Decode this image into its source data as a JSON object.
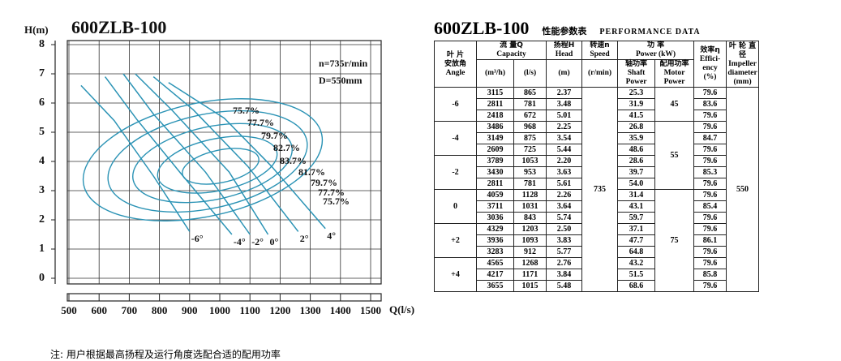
{
  "chart_data": {
    "type": "line",
    "title": "600ZLB-100",
    "y_label": "H(m)",
    "x_label": "Q(l/s)",
    "speed_note": "n=735r/min",
    "diameter_note": "D=550mm",
    "efficiency_labels": [
      "75.7%",
      "77.7%",
      "79.7%",
      "82.7%",
      "83.7%",
      "81.7%",
      "79.7%",
      "77.7%",
      "75.7%"
    ],
    "xlim": [
      500,
      1500
    ],
    "xticks": [
      500,
      600,
      700,
      800,
      900,
      1000,
      1100,
      1200,
      1300,
      1400,
      1500
    ],
    "ylim": [
      0,
      8
    ],
    "yticks": [
      0,
      1,
      2,
      3,
      4,
      5,
      6,
      7,
      8
    ],
    "grid": true,
    "color": "#2b93b5",
    "series": [
      {
        "name": "-6°",
        "x": [
          540,
          650,
          780,
          900
        ],
        "values": [
          6.6,
          5.4,
          3.5,
          1.6
        ]
      },
      {
        "name": "-4°",
        "x": [
          620,
          725,
          875,
          1040
        ],
        "values": [
          6.9,
          5.44,
          3.54,
          1.5
        ]
      },
      {
        "name": "-2°",
        "x": [
          680,
          781,
          953,
          1100
        ],
        "values": [
          7.0,
          5.61,
          3.63,
          1.5
        ]
      },
      {
        "name": "0°",
        "x": [
          720,
          843,
          1031,
          1160
        ],
        "values": [
          7.0,
          5.74,
          3.64,
          1.5
        ]
      },
      {
        "name": "2°",
        "x": [
          780,
          912,
          1093,
          1260
        ],
        "values": [
          6.9,
          5.77,
          3.83,
          1.6
        ]
      },
      {
        "name": "4°",
        "x": [
          830,
          1015,
          1171,
          1350
        ],
        "values": [
          6.7,
          5.48,
          3.84,
          1.7
        ]
      }
    ]
  },
  "table": {
    "title": "600ZLB-100",
    "title_cn": "性能参数表",
    "title_en": "PERFORMANCE DATA",
    "headers": {
      "angle_cn": "叶 片",
      "angle_cn2": "安放角",
      "angle_en": "Angle",
      "flow_cn": "流 量Q",
      "flow_en": "Capacity",
      "flow_u1": "(m³/h)",
      "flow_u2": "(l/s)",
      "head_cn": "扬程H",
      "head_en": "Head",
      "head_u": "(m)",
      "speed_cn": "转速n",
      "speed_en": "Speed",
      "speed_u": "(r/min)",
      "power_cn": "功 率",
      "power_en": "Power (kW)",
      "shaft_cn": "轴功率",
      "shaft_en": "Shaft Power",
      "motor_cn": "配用功率",
      "motor_en": "Motor Power",
      "eff_cn": "效率η",
      "eff_en": "Effici-ency",
      "eff_u": "(%)",
      "dia_cn": "叶 轮 直 径",
      "dia_en": "Impeller diameter",
      "dia_u": "(mm)"
    },
    "angles": [
      "-6",
      "-4",
      "-2",
      "0",
      "+2",
      "+4"
    ],
    "speed": "735",
    "motor_power": [
      "45",
      "55",
      "75"
    ],
    "diameter": "550",
    "rows": [
      [
        "3115",
        "865",
        "2.37",
        "25.3",
        "79.6"
      ],
      [
        "2811",
        "781",
        "3.48",
        "31.9",
        "83.6"
      ],
      [
        "2418",
        "672",
        "5.01",
        "41.5",
        "79.6"
      ],
      [
        "3486",
        "968",
        "2.25",
        "26.8",
        "79.6"
      ],
      [
        "3149",
        "875",
        "3.54",
        "35.9",
        "84.7"
      ],
      [
        "2609",
        "725",
        "5.44",
        "48.6",
        "79.6"
      ],
      [
        "3789",
        "1053",
        "2.20",
        "28.6",
        "79.6"
      ],
      [
        "3430",
        "953",
        "3.63",
        "39.7",
        "85.3"
      ],
      [
        "2811",
        "781",
        "5.61",
        "54.0",
        "79.6"
      ],
      [
        "4059",
        "1128",
        "2.26",
        "31.4",
        "79.6"
      ],
      [
        "3711",
        "1031",
        "3.64",
        "43.1",
        "85.4"
      ],
      [
        "3036",
        "843",
        "5.74",
        "59.7",
        "79.6"
      ],
      [
        "4329",
        "1203",
        "2.50",
        "37.1",
        "79.6"
      ],
      [
        "3936",
        "1093",
        "3.83",
        "47.7",
        "86.1"
      ],
      [
        "3283",
        "912",
        "5.77",
        "64.8",
        "79.6"
      ],
      [
        "4565",
        "1268",
        "2.76",
        "43.2",
        "79.6"
      ],
      [
        "4217",
        "1171",
        "3.84",
        "51.5",
        "85.8"
      ],
      [
        "3655",
        "1015",
        "5.48",
        "68.6",
        "79.6"
      ]
    ]
  },
  "note": "注: 用户根据最高扬程及运行角度选配合适的配用功率"
}
